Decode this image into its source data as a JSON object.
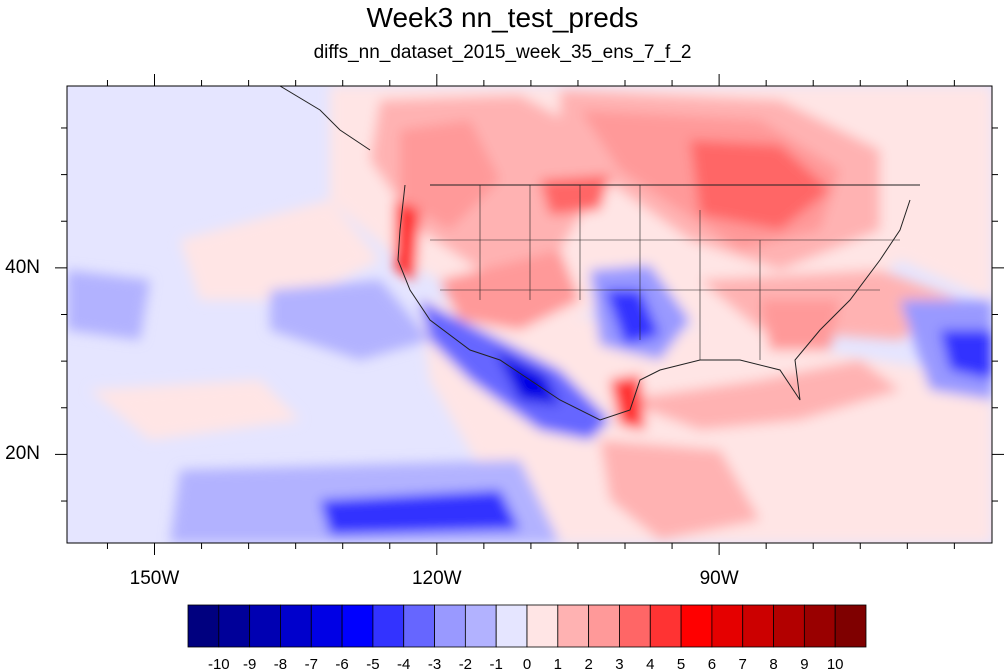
{
  "title": "Week3 nn_test_preds",
  "subtitle": "diffs_nn_dataset_2015_week_35_ens_7_f_2",
  "lon_ticks": [
    {
      "label": "150W",
      "lon": -150
    },
    {
      "label": "120W",
      "lon": -120
    },
    {
      "label": "90W",
      "lon": -90
    }
  ],
  "lat_ticks": [
    {
      "label": "40N",
      "lat": 40
    },
    {
      "label": "20N",
      "lat": 20
    }
  ],
  "map_extent": {
    "lon_min": -159.3,
    "lon_max": -61,
    "lat_min": 10.5,
    "lat_max": 59.5
  },
  "colorbar": {
    "labels": [
      "-10",
      "-9",
      "-8",
      "-7",
      "-6",
      "-5",
      "-4",
      "-3",
      "-2",
      "-1",
      "0",
      "1",
      "2",
      "3",
      "4",
      "5",
      "6",
      "7",
      "8",
      "9",
      "10"
    ],
    "colors": [
      "#00007f",
      "#000099",
      "#0000b2",
      "#0000cc",
      "#0000e5",
      "#0000ff",
      "#3333ff",
      "#6666ff",
      "#9999ff",
      "#b2b2ff",
      "#e5e5ff",
      "#ffe5e5",
      "#ffb2b2",
      "#ff9999",
      "#ff6666",
      "#ff3333",
      "#ff0000",
      "#e50000",
      "#cc0000",
      "#b20000",
      "#990000",
      "#7f0000"
    ]
  }
}
